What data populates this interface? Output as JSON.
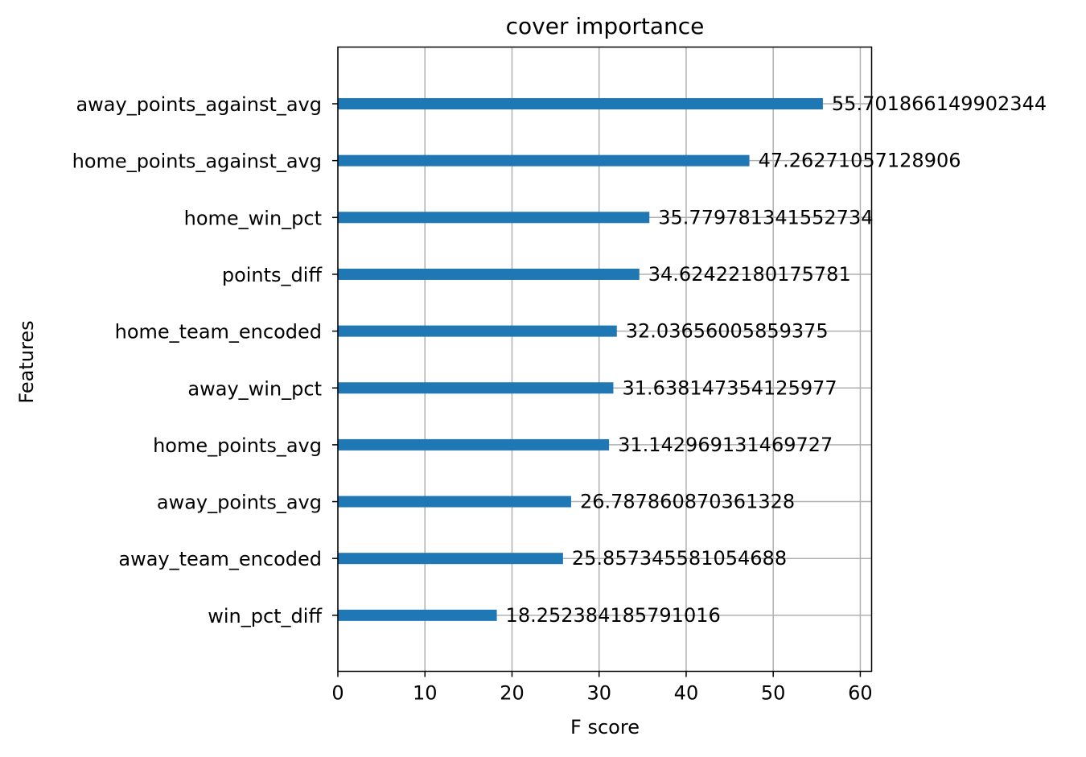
{
  "chart_data": {
    "type": "bar",
    "orientation": "horizontal",
    "title": "cover importance",
    "xlabel": "F score",
    "ylabel": "Features",
    "xlim": [
      0,
      61.3
    ],
    "xticks": [
      0,
      10,
      20,
      30,
      40,
      50,
      60
    ],
    "grid": true,
    "bar_color": "#1f77b4",
    "grid_color": "#b0b0b0",
    "categories": [
      "away_points_against_avg",
      "home_points_against_avg",
      "home_win_pct",
      "points_diff",
      "home_team_encoded",
      "away_win_pct",
      "home_points_avg",
      "away_points_avg",
      "away_team_encoded",
      "win_pct_diff"
    ],
    "values": [
      55.701866149902344,
      47.26271057128906,
      35.779781341552734,
      34.62422180175781,
      32.03656005859375,
      31.638147354125977,
      31.142969131469727,
      26.787860870361328,
      25.857345581054688,
      18.252384185791016
    ],
    "value_labels": [
      "55.701866149902344",
      "47.26271057128906",
      "35.779781341552734",
      "34.62422180175781",
      "32.03656005859375",
      "31.638147354125977",
      "31.142969131469727",
      "26.787860870361328",
      "25.857345581054688",
      "18.252384185791016"
    ]
  }
}
